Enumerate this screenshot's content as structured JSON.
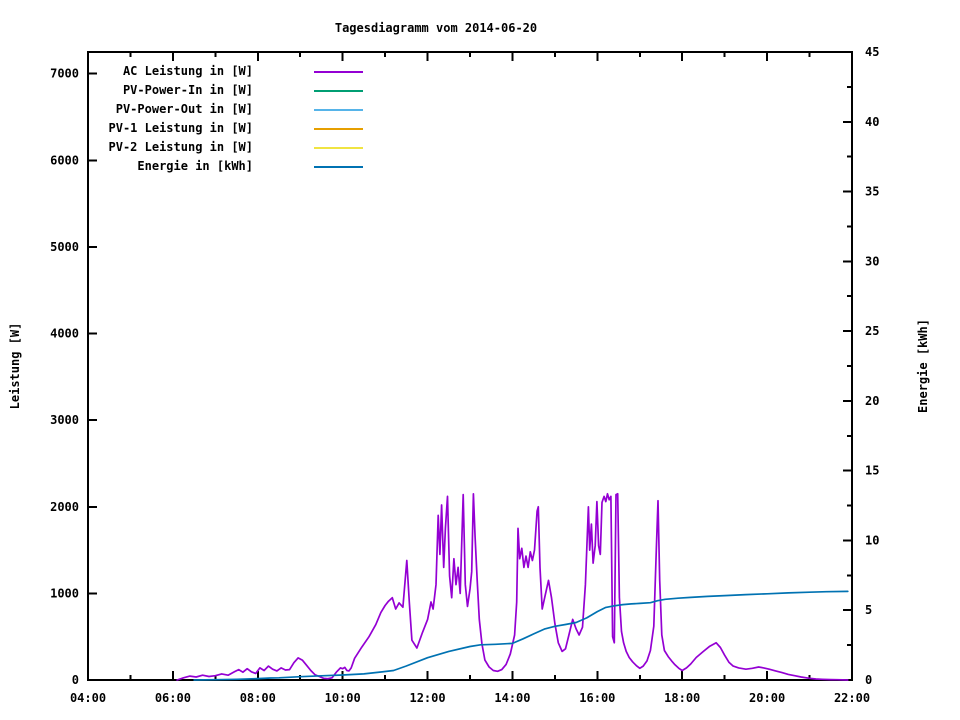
{
  "chart_data": {
    "type": "line",
    "title": "Tagesdiagramm vom 2014-06-20",
    "ylabel_left": "Leistung [W]",
    "ylabel_right": "Energie [kWh]",
    "background": "#ffffff",
    "axis_color": "#000000",
    "grid": false,
    "legend_position": "top-left",
    "x_axis": {
      "unit": "time",
      "range_hours": [
        4,
        22
      ],
      "major_step_hours": 2,
      "minor_step_hours": 1,
      "tick_labels": [
        "04:00",
        "06:00",
        "08:00",
        "10:00",
        "12:00",
        "14:00",
        "16:00",
        "18:00",
        "20:00",
        "22:00"
      ]
    },
    "y_left": {
      "range": [
        0,
        7250
      ],
      "major_step": 1000,
      "tick_labels": [
        "0",
        "1000",
        "2000",
        "3000",
        "4000",
        "5000",
        "6000",
        "7000"
      ]
    },
    "y_right": {
      "range": [
        0,
        45
      ],
      "major_step": 5,
      "minor_step": 2.5,
      "tick_labels": [
        "0",
        "5",
        "10",
        "15",
        "20",
        "25",
        "30",
        "35",
        "40",
        "45"
      ]
    },
    "series": [
      {
        "name": "AC Leistung in [W]",
        "color": "#9400D3",
        "axis": "left",
        "visible": true,
        "points": [
          [
            6.1,
            0
          ],
          [
            6.25,
            25
          ],
          [
            6.4,
            45
          ],
          [
            6.55,
            35
          ],
          [
            6.7,
            55
          ],
          [
            6.85,
            40
          ],
          [
            7.0,
            50
          ],
          [
            7.15,
            70
          ],
          [
            7.3,
            55
          ],
          [
            7.45,
            95
          ],
          [
            7.55,
            120
          ],
          [
            7.65,
            90
          ],
          [
            7.75,
            130
          ],
          [
            7.85,
            95
          ],
          [
            7.95,
            75
          ],
          [
            8.05,
            140
          ],
          [
            8.15,
            110
          ],
          [
            8.25,
            160
          ],
          [
            8.35,
            125
          ],
          [
            8.45,
            105
          ],
          [
            8.55,
            140
          ],
          [
            8.65,
            115
          ],
          [
            8.75,
            120
          ],
          [
            8.85,
            200
          ],
          [
            8.95,
            255
          ],
          [
            9.05,
            230
          ],
          [
            9.15,
            170
          ],
          [
            9.25,
            110
          ],
          [
            9.35,
            60
          ],
          [
            9.45,
            40
          ],
          [
            9.55,
            20
          ],
          [
            9.65,
            15
          ],
          [
            9.75,
            25
          ],
          [
            9.85,
            90
          ],
          [
            9.95,
            140
          ],
          [
            10.0,
            130
          ],
          [
            10.05,
            145
          ],
          [
            10.1,
            110
          ],
          [
            10.15,
            105
          ],
          [
            10.2,
            140
          ],
          [
            10.28,
            250
          ],
          [
            10.45,
            380
          ],
          [
            10.62,
            500
          ],
          [
            10.78,
            640
          ],
          [
            10.9,
            780
          ],
          [
            11.0,
            860
          ],
          [
            11.08,
            910
          ],
          [
            11.17,
            950
          ],
          [
            11.25,
            820
          ],
          [
            11.33,
            890
          ],
          [
            11.42,
            840
          ],
          [
            11.51,
            1380
          ],
          [
            11.57,
            900
          ],
          [
            11.63,
            460
          ],
          [
            11.75,
            370
          ],
          [
            11.88,
            550
          ],
          [
            12.0,
            700
          ],
          [
            12.08,
            900
          ],
          [
            12.13,
            820
          ],
          [
            12.2,
            1100
          ],
          [
            12.25,
            1900
          ],
          [
            12.29,
            1450
          ],
          [
            12.33,
            2020
          ],
          [
            12.38,
            1300
          ],
          [
            12.42,
            1750
          ],
          [
            12.47,
            2120
          ],
          [
            12.52,
            1200
          ],
          [
            12.57,
            950
          ],
          [
            12.62,
            1400
          ],
          [
            12.67,
            1100
          ],
          [
            12.72,
            1300
          ],
          [
            12.77,
            1000
          ],
          [
            12.84,
            2140
          ],
          [
            12.89,
            1100
          ],
          [
            12.94,
            850
          ],
          [
            13.0,
            1050
          ],
          [
            13.04,
            1250
          ],
          [
            13.08,
            2150
          ],
          [
            13.12,
            1650
          ],
          [
            13.17,
            1150
          ],
          [
            13.22,
            700
          ],
          [
            13.28,
            420
          ],
          [
            13.35,
            230
          ],
          [
            13.45,
            150
          ],
          [
            13.55,
            110
          ],
          [
            13.65,
            100
          ],
          [
            13.75,
            120
          ],
          [
            13.85,
            180
          ],
          [
            13.95,
            300
          ],
          [
            14.05,
            520
          ],
          [
            14.1,
            900
          ],
          [
            14.13,
            1750
          ],
          [
            14.17,
            1400
          ],
          [
            14.22,
            1520
          ],
          [
            14.27,
            1300
          ],
          [
            14.32,
            1430
          ],
          [
            14.37,
            1300
          ],
          [
            14.42,
            1480
          ],
          [
            14.47,
            1380
          ],
          [
            14.52,
            1500
          ],
          [
            14.58,
            1950
          ],
          [
            14.61,
            2000
          ],
          [
            14.65,
            1300
          ],
          [
            14.7,
            820
          ],
          [
            14.78,
            1000
          ],
          [
            14.85,
            1150
          ],
          [
            14.92,
            950
          ],
          [
            15.0,
            650
          ],
          [
            15.08,
            430
          ],
          [
            15.17,
            330
          ],
          [
            15.25,
            360
          ],
          [
            15.33,
            520
          ],
          [
            15.42,
            700
          ],
          [
            15.5,
            590
          ],
          [
            15.57,
            520
          ],
          [
            15.65,
            610
          ],
          [
            15.72,
            1100
          ],
          [
            15.79,
            2000
          ],
          [
            15.82,
            1500
          ],
          [
            15.86,
            1800
          ],
          [
            15.9,
            1350
          ],
          [
            15.95,
            1550
          ],
          [
            15.99,
            2060
          ],
          [
            16.03,
            1550
          ],
          [
            16.07,
            1450
          ],
          [
            16.11,
            2050
          ],
          [
            16.16,
            2120
          ],
          [
            16.2,
            2060
          ],
          [
            16.24,
            2150
          ],
          [
            16.28,
            2080
          ],
          [
            16.32,
            2120
          ],
          [
            16.36,
            500
          ],
          [
            16.4,
            430
          ],
          [
            16.44,
            2140
          ],
          [
            16.48,
            2150
          ],
          [
            16.52,
            950
          ],
          [
            16.57,
            560
          ],
          [
            16.62,
            430
          ],
          [
            16.68,
            330
          ],
          [
            16.75,
            260
          ],
          [
            16.83,
            210
          ],
          [
            16.92,
            165
          ],
          [
            17.0,
            135
          ],
          [
            17.08,
            160
          ],
          [
            17.17,
            220
          ],
          [
            17.25,
            340
          ],
          [
            17.33,
            620
          ],
          [
            17.39,
            1500
          ],
          [
            17.43,
            2070
          ],
          [
            17.47,
            1150
          ],
          [
            17.52,
            520
          ],
          [
            17.58,
            340
          ],
          [
            17.67,
            270
          ],
          [
            17.75,
            220
          ],
          [
            17.83,
            175
          ],
          [
            17.92,
            135
          ],
          [
            18.0,
            110
          ],
          [
            18.1,
            140
          ],
          [
            18.2,
            185
          ],
          [
            18.33,
            260
          ],
          [
            18.5,
            330
          ],
          [
            18.65,
            390
          ],
          [
            18.8,
            430
          ],
          [
            18.9,
            375
          ],
          [
            19.0,
            285
          ],
          [
            19.1,
            205
          ],
          [
            19.2,
            160
          ],
          [
            19.33,
            140
          ],
          [
            19.5,
            125
          ],
          [
            19.65,
            135
          ],
          [
            19.8,
            150
          ],
          [
            19.92,
            140
          ],
          [
            20.05,
            125
          ],
          [
            20.2,
            105
          ],
          [
            20.35,
            85
          ],
          [
            20.5,
            65
          ],
          [
            20.65,
            50
          ],
          [
            20.8,
            35
          ],
          [
            21.0,
            20
          ],
          [
            21.15,
            12
          ],
          [
            21.3,
            8
          ],
          [
            21.5,
            5
          ],
          [
            21.65,
            3
          ],
          [
            21.9,
            0
          ]
        ]
      },
      {
        "name": "PV-Power-In in [W]",
        "color": "#009E73",
        "axis": "left",
        "visible": false,
        "points": []
      },
      {
        "name": "PV-Power-Out in [W]",
        "color": "#56B4E9",
        "axis": "left",
        "visible": false,
        "points": []
      },
      {
        "name": "PV-1 Leistung in [W]",
        "color": "#E69F00",
        "axis": "left",
        "visible": false,
        "points": []
      },
      {
        "name": "PV-2 Leistung in [W]",
        "color": "#F0E442",
        "axis": "left",
        "visible": false,
        "points": []
      },
      {
        "name": "Energie in [kWh]",
        "color": "#0072B2",
        "axis": "right",
        "visible": true,
        "points": [
          [
            6.5,
            0
          ],
          [
            7.0,
            0.02
          ],
          [
            7.5,
            0.05
          ],
          [
            8.0,
            0.1
          ],
          [
            8.3,
            0.14
          ],
          [
            8.5,
            0.16
          ],
          [
            9.0,
            0.24
          ],
          [
            9.5,
            0.3
          ],
          [
            10.0,
            0.36
          ],
          [
            10.5,
            0.44
          ],
          [
            10.9,
            0.57
          ],
          [
            11.2,
            0.68
          ],
          [
            11.5,
            1.0
          ],
          [
            12.0,
            1.6
          ],
          [
            12.5,
            2.05
          ],
          [
            13.0,
            2.4
          ],
          [
            13.25,
            2.52
          ],
          [
            13.6,
            2.56
          ],
          [
            14.0,
            2.62
          ],
          [
            14.25,
            2.95
          ],
          [
            14.5,
            3.3
          ],
          [
            14.75,
            3.65
          ],
          [
            15.0,
            3.85
          ],
          [
            15.25,
            3.98
          ],
          [
            15.5,
            4.12
          ],
          [
            15.75,
            4.45
          ],
          [
            16.0,
            4.9
          ],
          [
            16.2,
            5.2
          ],
          [
            16.4,
            5.32
          ],
          [
            16.6,
            5.4
          ],
          [
            16.8,
            5.45
          ],
          [
            17.0,
            5.49
          ],
          [
            17.25,
            5.54
          ],
          [
            17.42,
            5.68
          ],
          [
            17.6,
            5.78
          ],
          [
            17.9,
            5.86
          ],
          [
            18.2,
            5.92
          ],
          [
            18.6,
            5.99
          ],
          [
            19.0,
            6.05
          ],
          [
            19.5,
            6.12
          ],
          [
            20.0,
            6.18
          ],
          [
            20.5,
            6.24
          ],
          [
            21.0,
            6.29
          ],
          [
            21.4,
            6.33
          ],
          [
            21.9,
            6.35
          ]
        ]
      }
    ]
  }
}
